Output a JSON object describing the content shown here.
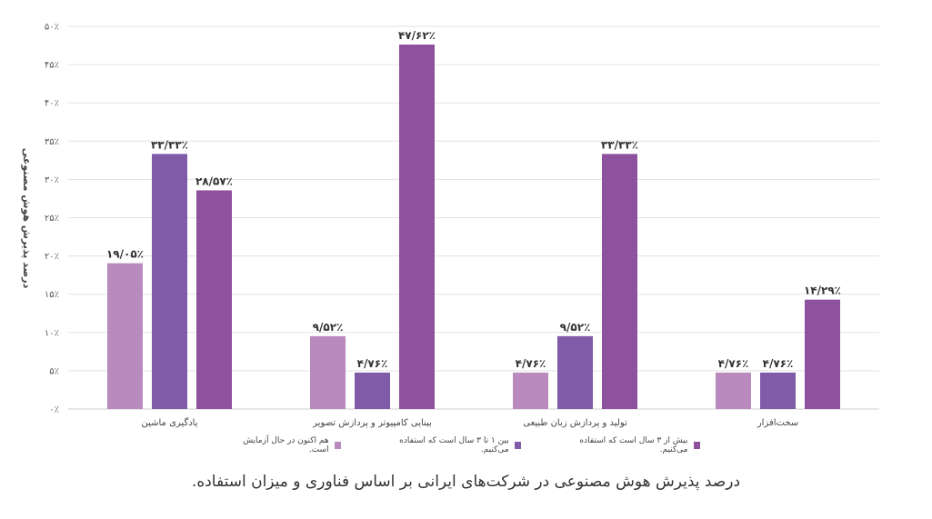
{
  "chart_data": {
    "type": "bar",
    "ylabel": "درصد پذیرش هوش مصنوعی",
    "ylim": [
      0,
      50
    ],
    "yticks": [
      0,
      5,
      10,
      15,
      20,
      25,
      30,
      35,
      40,
      45,
      50
    ],
    "ytick_labels": [
      "۰٪",
      "۵٪",
      "۱۰٪",
      "۱۵٪",
      "۲۰٪",
      "۲۵٪",
      "۳۰٪",
      "۳۵٪",
      "۴۰٪",
      "۴۵٪",
      "۵۰٪"
    ],
    "grid": true,
    "legend_position": "bottom",
    "categories": [
      "یادگیری ماشین",
      "بینایی کامپیوتر و پردازش تصویر",
      "تولید و پردازش زبان طبیعی",
      "سخت‌افزار"
    ],
    "series": [
      {
        "name": "هم اکنون در حال آزمایش است.",
        "color": "#b98abd",
        "values": [
          19.05,
          9.52,
          4.76,
          4.76
        ],
        "labels": [
          "۱۹/۰۵٪",
          "۹/۵۲٪",
          "۴/۷۶٪",
          "۴/۷۶٪"
        ]
      },
      {
        "name": "بین ۱ تا ۳ سال است که استفاده می‌کنیم.",
        "color": "#7f5ba8",
        "values": [
          33.33,
          4.76,
          9.52,
          4.76
        ],
        "labels": [
          "۳۳/۳۳٪",
          "۴/۷۶٪",
          "۹/۵۲٪",
          "۴/۷۶٪"
        ]
      },
      {
        "name": "بیش از ۳ سال است که استفاده می‌کنیم.",
        "color": "#8e519e",
        "values": [
          28.57,
          47.62,
          33.33,
          14.29
        ],
        "labels": [
          "۲۸/۵۷٪",
          "۴۷/۶۲٪",
          "۳۳/۳۳٪",
          "۱۴/۲۹٪"
        ]
      }
    ]
  },
  "caption": "درصد پذیرش هوش مصنوعی در شرکت‌های ایرانی بر اساس فناوری و میزان استفاده."
}
